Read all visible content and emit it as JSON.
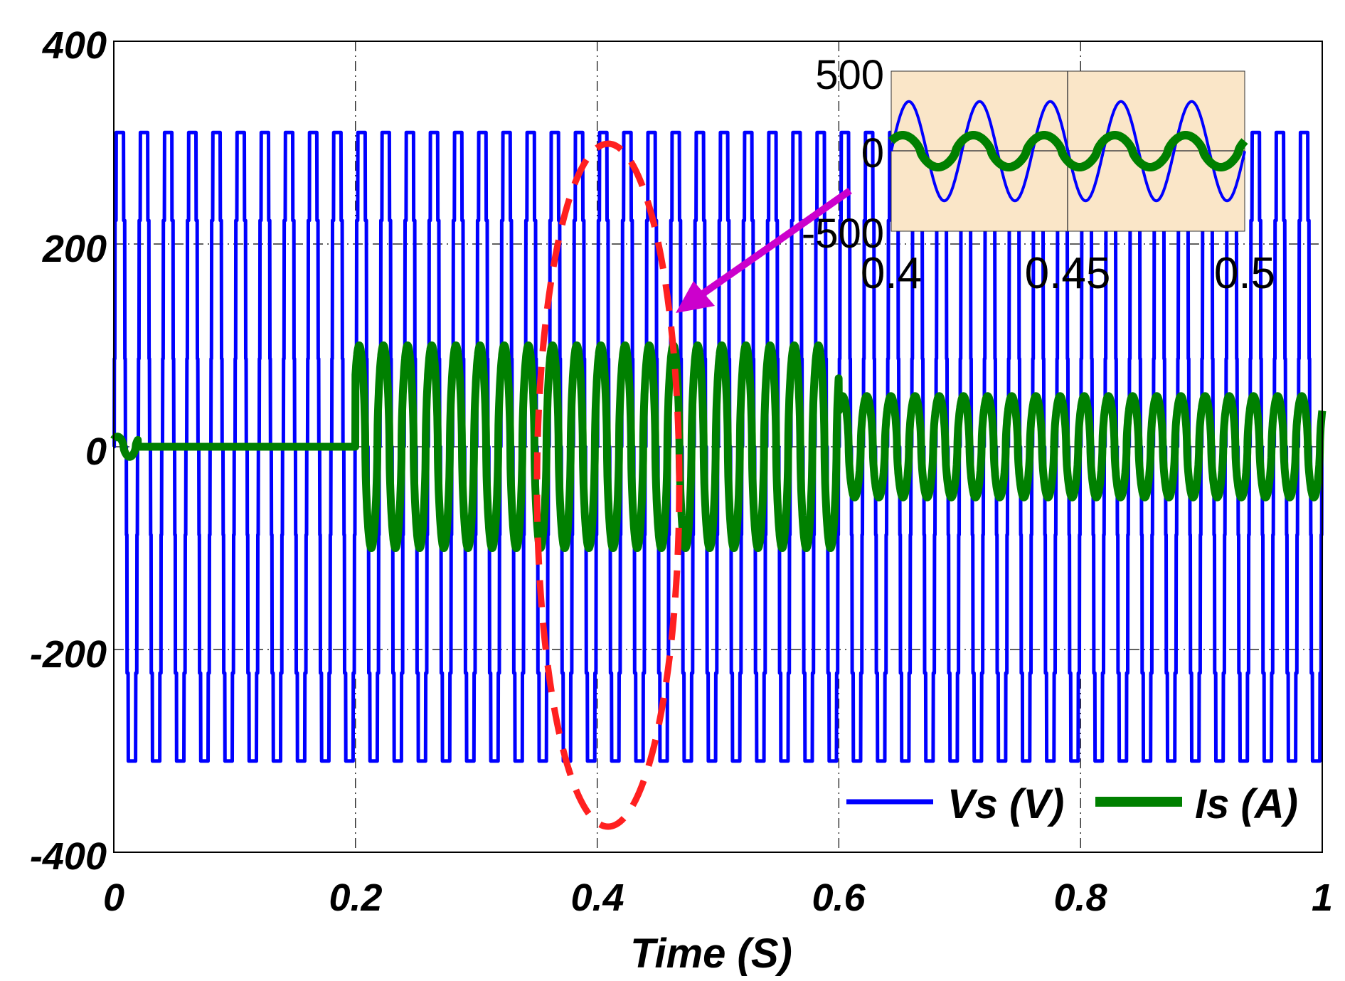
{
  "chart_data": {
    "type": "line",
    "title": "",
    "xlabel": "Time (S)",
    "ylabel": "",
    "xlim": [
      0,
      1
    ],
    "ylim": [
      -400,
      400
    ],
    "x_ticks": [
      "0",
      "0.2",
      "0.4",
      "0.6",
      "0.8",
      "1"
    ],
    "y_ticks": [
      "400",
      "200",
      "0",
      "-200",
      "-400"
    ],
    "grid": true,
    "legend_position": "bottom-right",
    "series": [
      {
        "name": "Vs (V)",
        "color": "#0000ff",
        "frequency_hz": 50,
        "amplitude": 310,
        "description": "square-like supply voltage, constant amplitude over 0-1 s"
      },
      {
        "name": "Is (A)",
        "color": "#008000",
        "frequency_hz": 50,
        "segments": [
          {
            "t_start": 0,
            "t_end": 0.02,
            "amplitude": 10
          },
          {
            "t_start": 0.02,
            "t_end": 0.2,
            "amplitude": 0
          },
          {
            "t_start": 0.2,
            "t_end": 0.6,
            "amplitude": 100
          },
          {
            "t_start": 0.6,
            "t_end": 1.0,
            "amplitude": 50
          }
        ]
      }
    ],
    "annotations": [
      {
        "type": "dashed-ellipse",
        "color": "#ff0000",
        "center_x": 0.41,
        "span_y": [
          -340,
          340
        ]
      },
      {
        "type": "arrow",
        "color": "#cc00cc",
        "from": "inset",
        "to_x": 0.46,
        "to_y": 140
      }
    ],
    "inset": {
      "background": "#fae6c8",
      "xlim": [
        0.4,
        0.5
      ],
      "ylim": [
        -500,
        500
      ],
      "x_ticks": [
        "0.4",
        "0.45",
        "0.5"
      ],
      "y_ticks": [
        "500",
        "0",
        "-500"
      ],
      "series": [
        {
          "name": "Vs (V)",
          "color": "#0000ff",
          "amplitude": 310,
          "frequency_hz": 50
        },
        {
          "name": "Is (A)",
          "color": "#008000",
          "amplitude": 100,
          "frequency_hz": 50
        }
      ]
    }
  }
}
